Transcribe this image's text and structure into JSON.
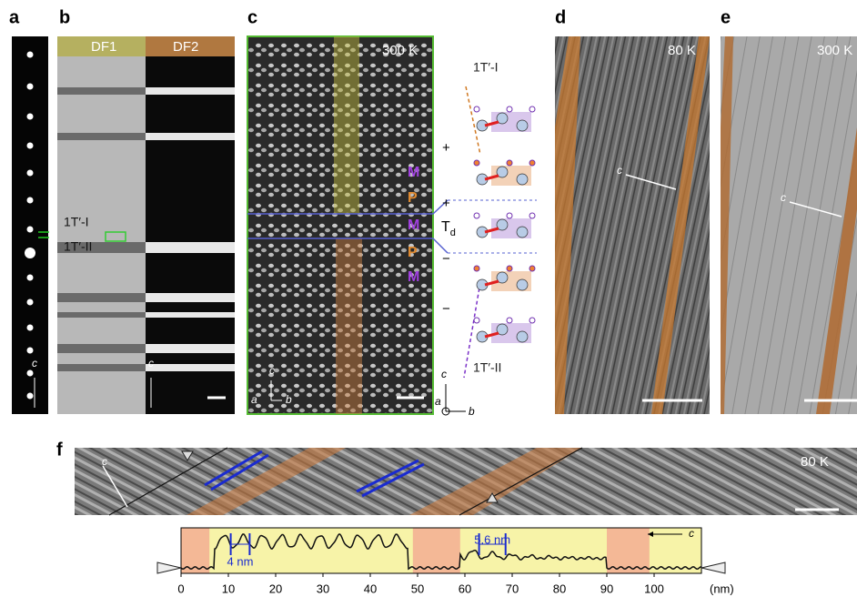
{
  "panels": {
    "a": {
      "label": "a",
      "axis_label": "c"
    },
    "b": {
      "label": "b",
      "df1": "DF1",
      "df2": "DF2",
      "phase_top": "1T′-I",
      "phase_bottom": "1T′-II",
      "axis_label": "c"
    },
    "c": {
      "label": "c",
      "temperature": "300 K",
      "layers": [
        "M",
        "P",
        "M",
        "P",
        "M"
      ],
      "axes": [
        "c",
        "a",
        "b"
      ],
      "model": {
        "top": "1T′-I",
        "bottom": "1T′-II",
        "td": "T",
        "td_sub": "d",
        "signs": [
          "+",
          "+",
          "−",
          "−"
        ],
        "axes": [
          "c",
          "a",
          "b"
        ]
      }
    },
    "d": {
      "label": "d",
      "temperature": "80 K",
      "axis_label": "c"
    },
    "e": {
      "label": "e",
      "temperature": "300 K",
      "axis_label": "c"
    },
    "f": {
      "label": "f",
      "temperature": "80 K",
      "axis_label": "c",
      "profile": {
        "xlim": [
          0,
          110
        ],
        "xticks": [
          0,
          10,
          20,
          30,
          40,
          50,
          60,
          70,
          80,
          90,
          100
        ],
        "unit": "(nm)",
        "axis_label": "c",
        "regions": [
          [
            0,
            6
          ],
          [
            49,
            59
          ],
          [
            90,
            99
          ]
        ],
        "spacings": [
          {
            "label": "4 nm",
            "from": 10.5,
            "to": 14.5
          },
          {
            "label": "5.6 nm",
            "from": 63,
            "to": 68.6
          }
        ]
      }
    }
  }
}
